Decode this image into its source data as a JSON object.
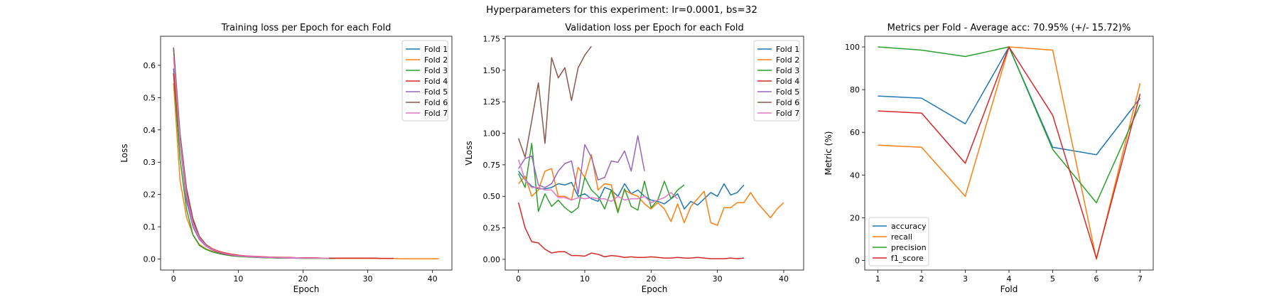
{
  "suptitle": "Hyperparameters for this experiment: lr=0.0001, bs=32",
  "colors": [
    "#1f77b4",
    "#ff7f0e",
    "#2ca02c",
    "#d62728",
    "#9467bd",
    "#8c564b",
    "#e377c2"
  ],
  "chart_data": [
    {
      "type": "line",
      "title": "Training loss per Epoch for each Fold",
      "xlabel": "Epoch",
      "ylabel": "Loss",
      "xlim": [
        -2,
        43
      ],
      "ylim": [
        -0.034,
        0.69
      ],
      "xticks": [
        0,
        10,
        20,
        30,
        40
      ],
      "yticks": [
        0.0,
        0.1,
        0.2,
        0.3,
        0.4,
        0.5,
        0.6
      ],
      "ytick_labels": [
        "0.0",
        "0.1",
        "0.2",
        "0.3",
        "0.4",
        "0.5",
        "0.6"
      ],
      "legend": "top-right",
      "grid": false,
      "series": [
        {
          "name": "Fold 1",
          "y": [
            0.59,
            0.36,
            0.19,
            0.11,
            0.065,
            0.042,
            0.03,
            0.022,
            0.017,
            0.013,
            0.011,
            0.009,
            0.008,
            0.007,
            0.006,
            0.005,
            0.005,
            0.004,
            0.004,
            0.004,
            0.003,
            0.003,
            0.003,
            0.003,
            0.002
          ]
        },
        {
          "name": "Fold 2",
          "y": [
            0.545,
            0.245,
            0.13,
            0.075,
            0.045,
            0.032,
            0.024,
            0.018,
            0.014,
            0.011,
            0.009,
            0.008,
            0.007,
            0.006,
            0.005,
            0.005,
            0.004,
            0.004,
            0.004,
            0.003,
            0.003,
            0.003,
            0.003,
            0.003,
            0.002,
            0.002,
            0.002,
            0.002,
            0.002,
            0.002,
            0.002,
            0.002,
            0.002,
            0.002,
            0.002,
            0.001,
            0.001,
            0.001,
            0.001,
            0.001,
            0.001,
            0.001
          ]
        },
        {
          "name": "Fold 3",
          "y": [
            0.575,
            0.31,
            0.155,
            0.075,
            0.042,
            0.03,
            0.022,
            0.017,
            0.013,
            0.01,
            0.008,
            0.007,
            0.006,
            0.005,
            0.004,
            0.004,
            0.003,
            0.003,
            0.003,
            0.003,
            0.002,
            0.002,
            0.002,
            0.002,
            0.002,
            0.002
          ]
        },
        {
          "name": "Fold 4",
          "y": [
            0.575,
            0.375,
            0.21,
            0.12,
            0.07,
            0.045,
            0.032,
            0.024,
            0.019,
            0.015,
            0.012,
            0.01,
            0.009,
            0.008,
            0.007,
            0.006,
            0.006,
            0.005,
            0.005,
            0.004,
            0.004,
            0.004,
            0.004,
            0.003,
            0.003,
            0.003,
            0.003,
            0.003,
            0.003,
            0.003,
            0.003,
            0.003,
            0.002,
            0.002,
            0.002
          ]
        },
        {
          "name": "Fold 5",
          "y": [
            0.655,
            0.36,
            0.18,
            0.1,
            0.06,
            0.04,
            0.028,
            0.02,
            0.015,
            0.012,
            0.01,
            0.008,
            0.007,
            0.006,
            0.005,
            0.005,
            0.004,
            0.004,
            0.003,
            0.003,
            0.003
          ]
        },
        {
          "name": "Fold 6",
          "y": [
            0.655,
            0.39,
            0.22,
            0.125,
            0.07,
            0.045,
            0.03,
            0.02,
            0.015,
            0.012,
            0.01,
            0.008,
            0.007
          ]
        },
        {
          "name": "Fold 7",
          "y": [
            0.625,
            0.37,
            0.2,
            0.11,
            0.065,
            0.042,
            0.03,
            0.022,
            0.017,
            0.013,
            0.01,
            0.009,
            0.008,
            0.007,
            0.006,
            0.005,
            0.005,
            0.004,
            0.004,
            0.004,
            0.003,
            0.003,
            0.003,
            0.003,
            0.003
          ]
        }
      ]
    },
    {
      "type": "line",
      "title": "Validation loss per Epoch for each Fold",
      "xlabel": "Epoch",
      "ylabel": "VLoss",
      "xlim": [
        -2,
        43
      ],
      "ylim": [
        -0.085,
        1.77
      ],
      "xticks": [
        0,
        10,
        20,
        30,
        40
      ],
      "yticks": [
        0.0,
        0.25,
        0.5,
        0.75,
        1.0,
        1.25,
        1.5,
        1.75
      ],
      "ytick_labels": [
        "0.00",
        "0.25",
        "0.50",
        "0.75",
        "1.00",
        "1.25",
        "1.50",
        "1.75"
      ],
      "legend": "top-right",
      "grid": false,
      "series": [
        {
          "name": "Fold 1",
          "y": [
            0.7,
            0.63,
            0.58,
            0.56,
            0.56,
            0.57,
            0.6,
            0.59,
            0.61,
            0.5,
            0.52,
            0.48,
            0.46,
            0.57,
            0.55,
            0.5,
            0.6,
            0.52,
            0.55,
            0.5,
            0.47,
            0.46,
            0.44,
            0.48,
            0.52,
            0.4,
            0.46,
            0.43,
            0.48,
            0.53,
            0.5,
            0.6,
            0.51,
            0.53,
            0.59
          ]
        },
        {
          "name": "Fold 2",
          "y": [
            0.6,
            0.66,
            0.5,
            0.55,
            0.7,
            0.72,
            0.5,
            0.5,
            0.47,
            0.73,
            0.65,
            0.83,
            0.55,
            0.6,
            0.59,
            0.38,
            0.55,
            0.52,
            0.5,
            0.44,
            0.4,
            0.45,
            0.4,
            0.3,
            0.44,
            0.29,
            0.42,
            0.48,
            0.54,
            0.29,
            0.27,
            0.41,
            0.41,
            0.45,
            0.45,
            0.53,
            0.45,
            0.39,
            0.33,
            0.4,
            0.45
          ]
        },
        {
          "name": "Fold 3",
          "y": [
            0.68,
            0.57,
            0.92,
            0.38,
            0.52,
            0.42,
            0.47,
            0.41,
            0.37,
            0.41,
            0.65,
            0.55,
            0.5,
            0.4,
            0.55,
            0.37,
            0.56,
            0.42,
            0.39,
            0.62,
            0.41,
            0.47,
            0.62,
            0.48,
            0.55,
            0.59
          ]
        },
        {
          "name": "Fold 4",
          "y": [
            0.45,
            0.25,
            0.14,
            0.13,
            0.08,
            0.05,
            0.06,
            0.06,
            0.03,
            0.03,
            0.025,
            0.05,
            0.04,
            0.02,
            0.03,
            0.025,
            0.015,
            0.02,
            0.015,
            0.015,
            0.02,
            0.015,
            0.01,
            0.01,
            0.015,
            0.01,
            0.01,
            0.015,
            0.01,
            0.005,
            0.005,
            0.005,
            0.01,
            0.005,
            0.01
          ]
        },
        {
          "name": "Fold 5",
          "y": [
            0.72,
            0.8,
            0.82,
            0.59,
            0.57,
            0.6,
            0.7,
            0.76,
            0.78,
            0.52,
            0.91,
            0.81,
            0.63,
            0.65,
            0.78,
            0.77,
            0.86,
            0.7,
            0.98,
            0.7
          ]
        },
        {
          "name": "Fold 6",
          "y": [
            0.96,
            0.81,
            1.1,
            1.4,
            0.92,
            1.6,
            1.44,
            1.52,
            1.26,
            1.52,
            1.62,
            1.69
          ]
        },
        {
          "name": "Fold 7",
          "y": [
            0.79,
            0.63,
            0.57,
            0.57,
            0.55,
            0.55,
            0.49,
            0.49,
            0.47,
            0.49,
            0.48,
            0.49,
            0.48,
            0.48,
            0.46,
            0.5,
            0.47,
            0.48,
            0.48,
            0.5,
            0.45,
            0.47,
            0.49,
            0.53,
            0.48
          ]
        }
      ]
    },
    {
      "type": "line",
      "title": "Metrics per Fold - Average acc: 70.95% (+/- 15.72)%",
      "xlabel": "Fold",
      "ylabel": "Metric (%)",
      "xlim": [
        0.7,
        7.3
      ],
      "ylim": [
        -4.5,
        105
      ],
      "xticks": [
        1,
        2,
        3,
        4,
        5,
        6,
        7
      ],
      "yticks": [
        0,
        20,
        40,
        60,
        80,
        100
      ],
      "ytick_labels": [
        "0",
        "20",
        "40",
        "60",
        "80",
        "100"
      ],
      "legend": "bottom-left",
      "grid": false,
      "x": [
        1,
        2,
        3,
        4,
        5,
        6,
        7
      ],
      "series": [
        {
          "name": "accuracy",
          "y": [
            77.0,
            76.0,
            64.0,
            100.0,
            53.0,
            49.5,
            76.0
          ]
        },
        {
          "name": "recall",
          "y": [
            54.0,
            53.0,
            30.0,
            100.0,
            98.5,
            0.5,
            83.0
          ]
        },
        {
          "name": "precision",
          "y": [
            100.0,
            98.5,
            95.5,
            100.0,
            52.0,
            27.0,
            73.0
          ]
        },
        {
          "name": "f1_score",
          "y": [
            70.0,
            69.0,
            45.5,
            100.0,
            68.0,
            1.0,
            78.0
          ]
        }
      ]
    }
  ]
}
